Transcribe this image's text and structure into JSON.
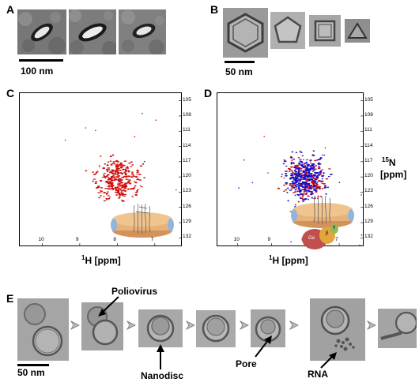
{
  "panels": {
    "A": {
      "letter": "A",
      "scale_label": "100 nm"
    },
    "B": {
      "letter": "B",
      "scale_label": "50 nm"
    },
    "C": {
      "letter": "C",
      "xlabel_main": "H [ppm]",
      "xlabel_sup": "1"
    },
    "D": {
      "letter": "D",
      "xlabel_main": "H [ppm]",
      "xlabel_sup": "1",
      "ylabel_sup": "15",
      "ylabel_main": "N",
      "ylabel_unit": "[ppm]",
      "protein_labels": [
        "Gα",
        "β",
        "γ"
      ]
    },
    "E": {
      "letter": "E",
      "scale_label": "50 nm",
      "callouts": {
        "poliovirus": "Poliovirus",
        "nanodisc": "Nanodisc",
        "pore": "Pore",
        "rna": "RNA"
      }
    }
  },
  "chart_data": [
    {
      "type": "scatter",
      "panel": "C",
      "xlabel": "1H [ppm]",
      "x_ticks": [
        "10",
        "9",
        "8",
        "7"
      ],
      "y_ticks": [
        "105",
        "108",
        "111",
        "114",
        "117",
        "120",
        "123",
        "126",
        "129",
        "132"
      ],
      "xlim": [
        10.6,
        6.3
      ],
      "ylim": [
        103.5,
        133.5
      ],
      "series": [
        {
          "color": "#d01010",
          "center": [
            8.0,
            120.5
          ],
          "spread": [
            0.55,
            4.0
          ],
          "count": 320
        }
      ]
    },
    {
      "type": "scatter",
      "panel": "D",
      "xlabel": "1H [ppm]",
      "ylabel": "15N [ppm]",
      "x_ticks": [
        "10",
        "9",
        "8",
        "7"
      ],
      "y_ticks": [
        "105",
        "108",
        "111",
        "114",
        "117",
        "120",
        "123",
        "126",
        "129",
        "132"
      ],
      "xlim": [
        10.6,
        6.3
      ],
      "ylim": [
        103.5,
        133.5
      ],
      "series": [
        {
          "color": "#d01010",
          "center": [
            8.0,
            120.5
          ],
          "spread": [
            0.55,
            4.0
          ],
          "count": 260
        },
        {
          "color": "#1010d0",
          "center": [
            8.05,
            120.0
          ],
          "spread": [
            0.6,
            4.2
          ],
          "count": 300
        }
      ]
    }
  ]
}
